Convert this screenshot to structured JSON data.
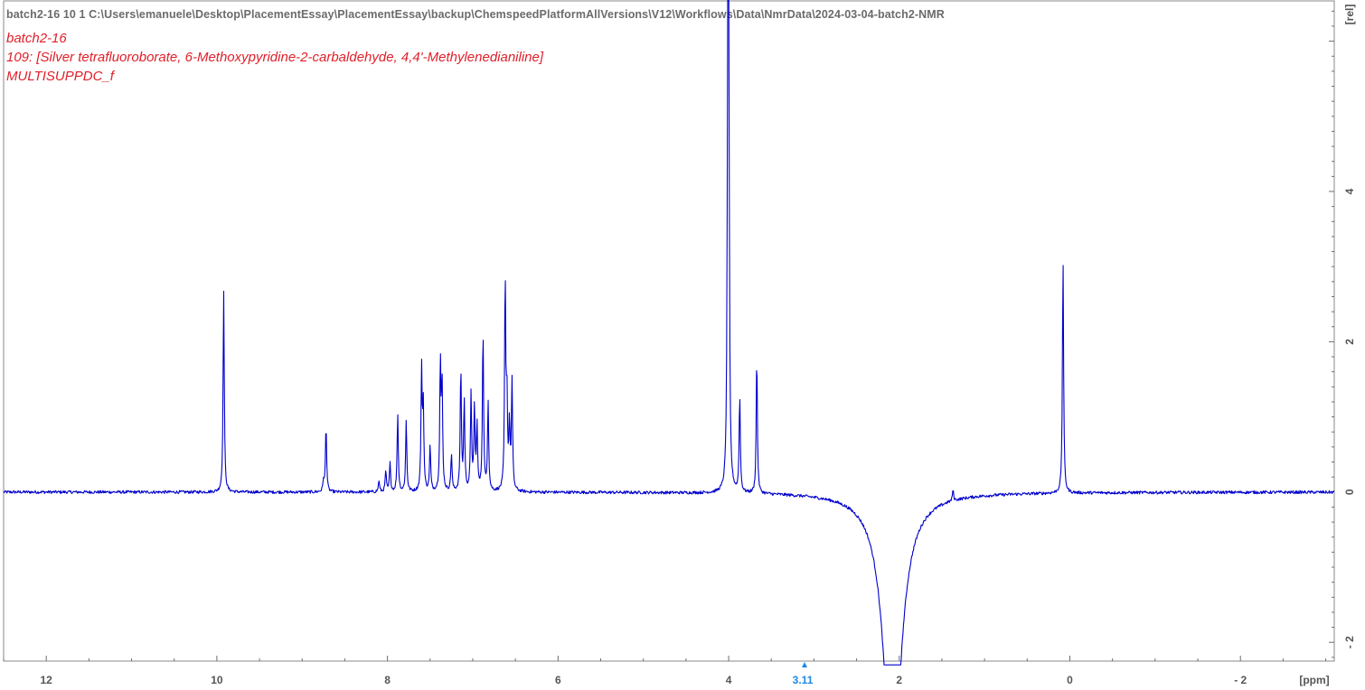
{
  "header": {
    "path": "batch2-16  10  1  C:\\Users\\emanuele\\Desktop\\PlacementEssay\\PlacementEssay\\backup\\ChemspeedPlatformAllVersions\\V12\\Workflows\\Data\\NmrData\\2024-03-04-batch2-NMR"
  },
  "info": {
    "line1": "batch2-16",
    "line2": "109: [Silver tetrafluoroborate, 6-Methoxypyridine-2-carbaldehyde, 4,4'-Methylenedianiline]",
    "line3": "MULTISUPPDC_f"
  },
  "colors": {
    "spectrum": "#0000cc",
    "info_text": "#e0202a",
    "cursor": "#1e88e5",
    "axis": "#555555"
  },
  "cursor": {
    "value": 3.11,
    "label": "3.11"
  },
  "chart_data": {
    "type": "line",
    "xlabel": "[ppm]",
    "ylabel": "[rel]",
    "xlim": [
      12.5,
      -3.1
    ],
    "ylim": [
      -2.25,
      6.5
    ],
    "x_reversed": true,
    "x_ticks": [
      12,
      10,
      8,
      6,
      4,
      2,
      0,
      -2
    ],
    "x_tick_labels": [
      "12",
      "10",
      "8",
      "6",
      "4",
      "2",
      "0",
      "- 2"
    ],
    "y_ticks": [
      4,
      2,
      0,
      -2
    ],
    "y_tick_labels": [
      "4",
      "2",
      "0",
      "- 2"
    ],
    "baseline": 0,
    "peaks": [
      {
        "x": 9.92,
        "y": 2.7
      },
      {
        "x": 8.72,
        "y": 0.9
      },
      {
        "x": 8.75,
        "y": 0.15
      },
      {
        "x": 8.1,
        "y": 0.15
      },
      {
        "x": 8.02,
        "y": 0.28
      },
      {
        "x": 7.97,
        "y": 0.38
      },
      {
        "x": 7.88,
        "y": 1.05
      },
      {
        "x": 7.78,
        "y": 0.95
      },
      {
        "x": 7.6,
        "y": 1.6
      },
      {
        "x": 7.58,
        "y": 1.1
      },
      {
        "x": 7.5,
        "y": 0.6
      },
      {
        "x": 7.38,
        "y": 1.7
      },
      {
        "x": 7.36,
        "y": 1.4
      },
      {
        "x": 7.25,
        "y": 0.5
      },
      {
        "x": 7.14,
        "y": 1.65
      },
      {
        "x": 7.1,
        "y": 1.2
      },
      {
        "x": 7.02,
        "y": 1.3
      },
      {
        "x": 6.98,
        "y": 1.1
      },
      {
        "x": 6.95,
        "y": 0.85
      },
      {
        "x": 6.88,
        "y": 2.15
      },
      {
        "x": 6.82,
        "y": 1.2
      },
      {
        "x": 6.62,
        "y": 2.8
      },
      {
        "x": 6.6,
        "y": 1.2
      },
      {
        "x": 6.57,
        "y": 0.85
      },
      {
        "x": 6.54,
        "y": 1.45
      },
      {
        "x": 4.0,
        "y": 6.4
      },
      {
        "x": 4.01,
        "y": 4.8
      },
      {
        "x": 3.87,
        "y": 1.3
      },
      {
        "x": 3.67,
        "y": 1.85
      },
      {
        "x": 1.37,
        "y": 0.15
      },
      {
        "x": 0.08,
        "y": 3.15
      }
    ],
    "negative_feature": {
      "center": 2.08,
      "min": -2.25,
      "width": 0.1
    }
  }
}
